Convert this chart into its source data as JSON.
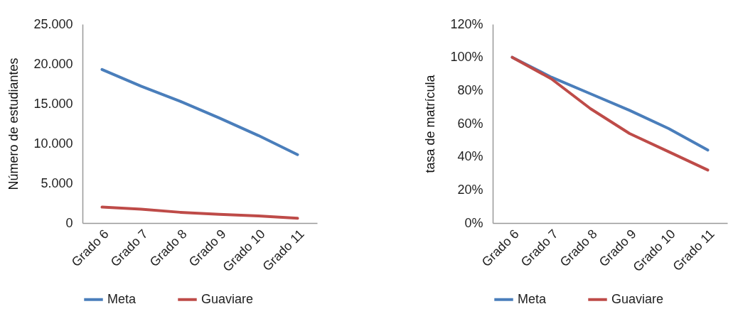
{
  "chart_data": [
    {
      "type": "line",
      "ylabel": "Número de estudiantes",
      "categories": [
        "Grado 6",
        "Grado 7",
        "Grado 8",
        "Grado 9",
        "Grado 10",
        "Grado 11"
      ],
      "series": [
        {
          "name": "Meta",
          "color": "#4a7ebb",
          "values": [
            19300,
            17200,
            15300,
            13200,
            11000,
            8600
          ]
        },
        {
          "name": "Guaviare",
          "color": "#be4b48",
          "values": [
            2000,
            1750,
            1350,
            1100,
            900,
            600
          ]
        }
      ],
      "ylim": [
        0,
        25000
      ],
      "yticks": [
        0,
        {
          "value": 5000,
          "label": "5.000"
        },
        {
          "value": 10000,
          "label": "10.000"
        },
        {
          "value": 15000,
          "label": "15.000"
        },
        {
          "value": 20000,
          "label": "20.000"
        },
        {
          "value": 25000,
          "label": "25.000"
        }
      ],
      "legend": "bottom"
    },
    {
      "type": "line",
      "ylabel": "tasa de matrícula",
      "categories": [
        "Grado 6",
        "Grado 7",
        "Grado 8",
        "Grado 9",
        "Grado 10",
        "Grado 11"
      ],
      "series": [
        {
          "name": "Meta",
          "color": "#4a7ebb",
          "values": [
            100,
            88,
            78,
            68,
            57,
            44
          ]
        },
        {
          "name": "Guaviare",
          "color": "#be4b48",
          "values": [
            100,
            87,
            69,
            54,
            43,
            32
          ]
        }
      ],
      "ylim": [
        0,
        120
      ],
      "yticks": [
        {
          "value": 0,
          "label": "0%"
        },
        {
          "value": 20,
          "label": "20%"
        },
        {
          "value": 40,
          "label": "40%"
        },
        {
          "value": 60,
          "label": "60%"
        },
        {
          "value": 80,
          "label": "80%"
        },
        {
          "value": 100,
          "label": "100%"
        },
        {
          "value": 120,
          "label": "120%"
        }
      ],
      "legend": "bottom"
    }
  ]
}
